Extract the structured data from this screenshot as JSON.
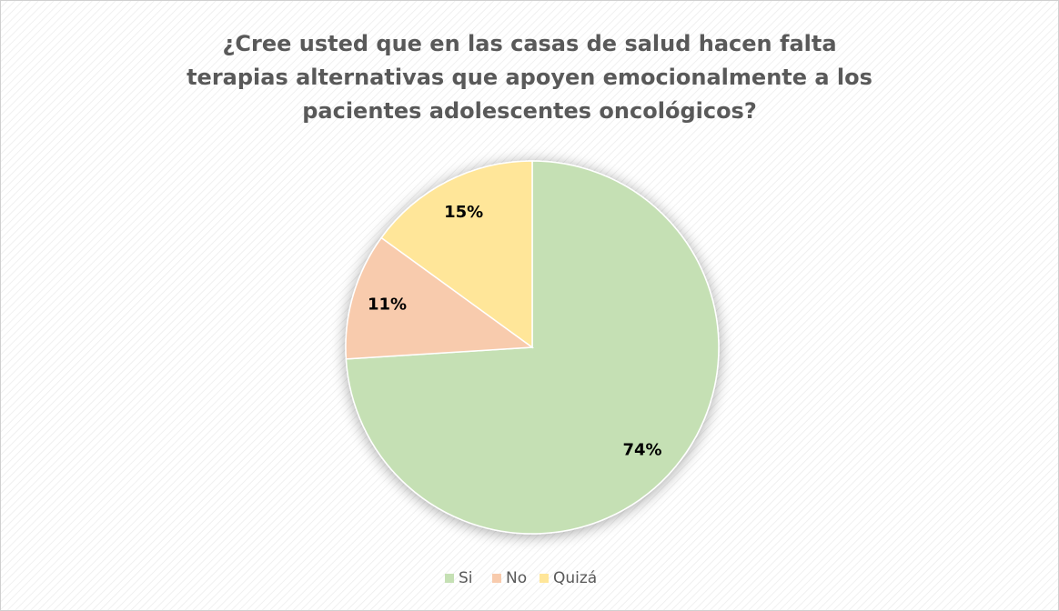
{
  "chart_data": {
    "type": "pie",
    "title": "¿Cree usted que en las casas de salud hacen falta terapias alternativas que apoyen emocionalmente a los pacientes adolescentes oncológicos?",
    "categories": [
      "Si",
      "No",
      "Quizá"
    ],
    "values": [
      74,
      11,
      15
    ],
    "value_labels": [
      "74%",
      "11%",
      "15%"
    ],
    "colors": [
      "#c5e0b4",
      "#f8cbad",
      "#ffe699"
    ],
    "legend": "bottom"
  }
}
